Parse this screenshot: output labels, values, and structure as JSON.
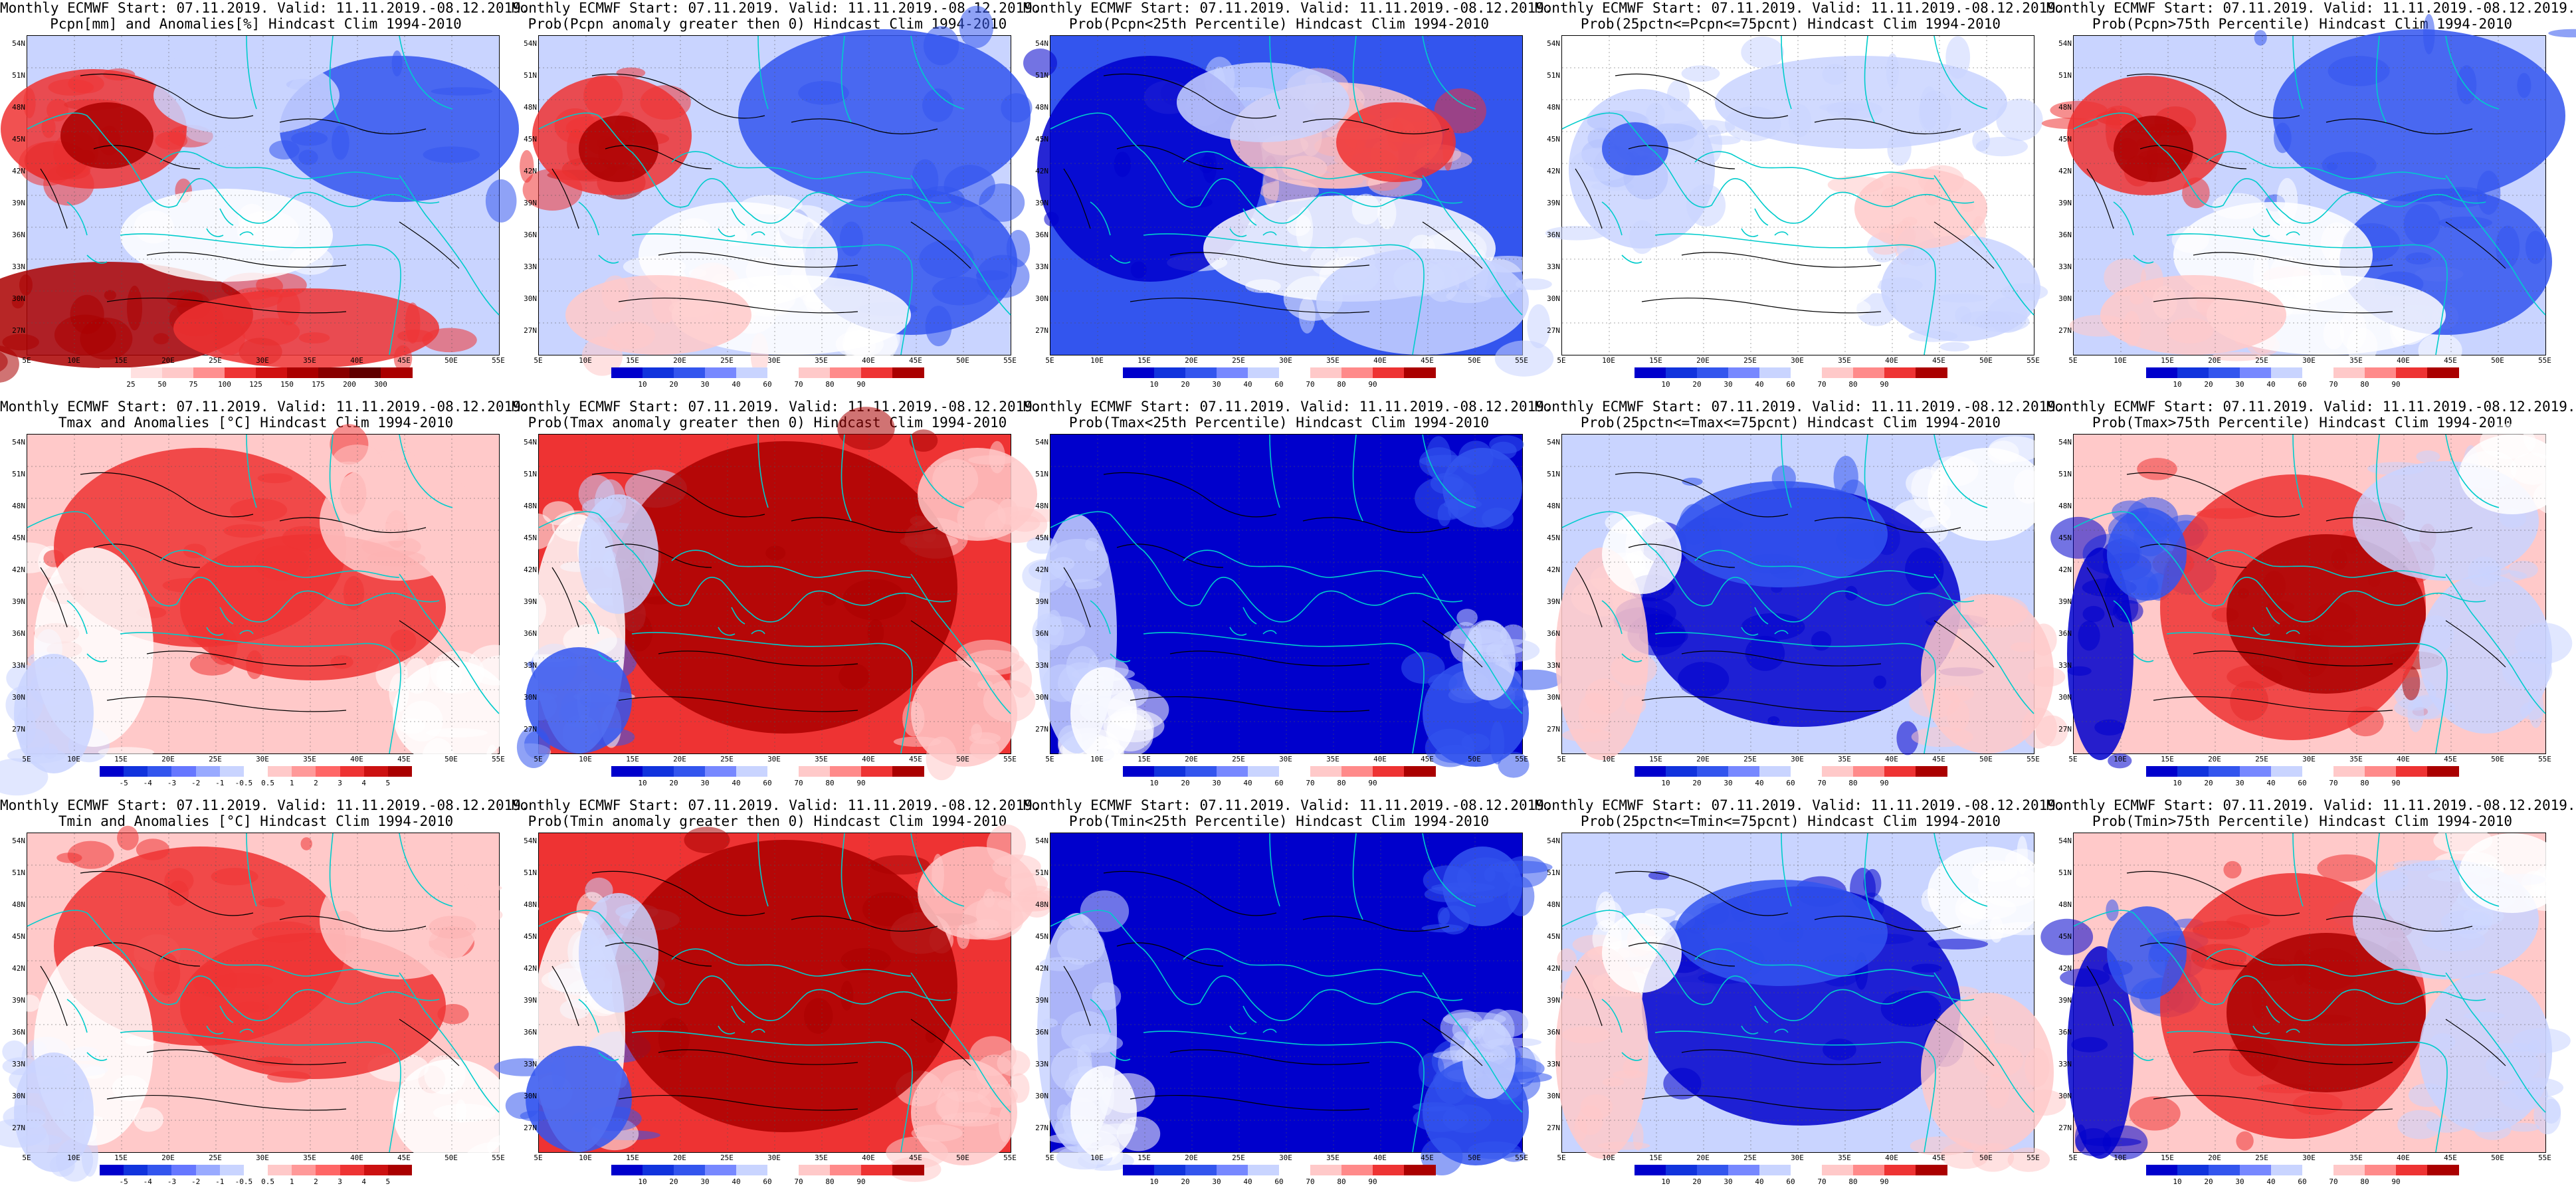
{
  "colors": {
    "deep_blue": "#0000cc",
    "blue": "#3355ee",
    "light_blue": "#c9d4ff",
    "white": "#ffffff",
    "light_red": "#ffc9c9",
    "red": "#ee3333",
    "dark_red": "#aa0000",
    "coast": "#00cccc",
    "contour": "#000000"
  },
  "lat_labels": [
    "54N",
    "51N",
    "48N",
    "45N",
    "42N",
    "39N",
    "36N",
    "33N",
    "30N",
    "27N"
  ],
  "lon_labels": [
    "5E",
    "10E",
    "15E",
    "20E",
    "25E",
    "30E",
    "35E",
    "40E",
    "45E",
    "50E",
    "55E"
  ],
  "colorbars": {
    "pcpn": [
      "25",
      "50",
      "75",
      "100",
      "125",
      "150",
      "175",
      "200",
      "300"
    ],
    "prob": [
      "10",
      "20",
      "30",
      "40",
      "60",
      "70",
      "80",
      "90"
    ],
    "temp": [
      "-5",
      "-4",
      "-3",
      "-2",
      "-1",
      "-0.5",
      "0.5",
      "1",
      "2",
      "3",
      "4",
      "5"
    ]
  },
  "panels": [
    {
      "title1": "Monthly ECMWF Start: 07.11.2019. Valid: 11.11.2019.-08.12.2019.",
      "title2": "Pcpn[mm] and Anomalies[%] Hindcast Clim 1994-2010",
      "bar": "pcpn",
      "bias": "red-south"
    },
    {
      "title1": "Monthly ECMWF Start: 07.11.2019. Valid: 11.11.2019.-08.12.2019.",
      "title2": "Prob(Pcpn anomaly greater then 0) Hindcast Clim 1994-2010",
      "bar": "prob",
      "bias": "blue-east"
    },
    {
      "title1": "Monthly ECMWF Start: 07.11.2019. Valid: 11.11.2019.-08.12.2019.",
      "title2": "Prob(Pcpn<25th Percentile) Hindcast Clim 1994-2010",
      "bar": "prob",
      "bias": "blue-west"
    },
    {
      "title1": "Monthly ECMWF Start: 07.11.2019. Valid: 11.11.2019.-08.12.2019.",
      "title2": "Prob(25pctn<=Pcpn<=75pcnt) Hindcast Clim 1994-2010",
      "bar": "prob",
      "bias": "pale"
    },
    {
      "title1": "Monthly ECMWF Start: 07.11.2019. Valid: 11.11.2019.-08.12.2019.",
      "title2": "Prob(Pcpn>75th Percentile) Hindcast Clim 1994-2010",
      "bar": "prob",
      "bias": "blue-east"
    },
    {
      "title1": "Monthly ECMWF Start: 07.11.2019. Valid: 11.11.2019.-08.12.2019.",
      "title2": "Tmax and Anomalies [°C] Hindcast Clim 1994-2010",
      "bar": "temp",
      "bias": "light-red"
    },
    {
      "title1": "Monthly ECMWF Start: 07.11.2019. Valid: 11.11.2019.-08.12.2019.",
      "title2": "Prob(Tmax anomaly greater then 0) Hindcast Clim 1994-2010",
      "bar": "prob",
      "bias": "dark-red"
    },
    {
      "title1": "Monthly ECMWF Start: 07.11.2019. Valid: 11.11.2019.-08.12.2019.",
      "title2": "Prob(Tmax<25th Percentile) Hindcast Clim 1994-2010",
      "bar": "prob",
      "bias": "deep-blue"
    },
    {
      "title1": "Monthly ECMWF Start: 07.11.2019. Valid: 11.11.2019.-08.12.2019.",
      "title2": "Prob(25pctn<=Tmax<=75pcnt) Hindcast Clim 1994-2010",
      "bar": "prob",
      "bias": "blue-center"
    },
    {
      "title1": "Monthly ECMWF Start: 07.11.2019. Valid: 11.11.2019.-08.12.2019.",
      "title2": "Prob(Tmax>75th Percentile) Hindcast Clim 1994-2010",
      "bar": "prob",
      "bias": "red-center"
    },
    {
      "title1": "Monthly ECMWF Start: 07.11.2019. Valid: 11.11.2019.-08.12.2019.",
      "title2": "Tmin and Anomalies [°C] Hindcast Clim 1994-2010",
      "bar": "temp",
      "bias": "light-red"
    },
    {
      "title1": "Monthly ECMWF Start: 07.11.2019. Valid: 11.11.2019.-08.12.2019.",
      "title2": "Prob(Tmin anomaly greater then 0) Hindcast Clim 1994-2010",
      "bar": "prob",
      "bias": "dark-red"
    },
    {
      "title1": "Monthly ECMWF Start: 07.11.2019. Valid: 11.11.2019.-08.12.2019.",
      "title2": "Prob(Tmin<25th Percentile) Hindcast Clim 1994-2010",
      "bar": "prob",
      "bias": "deep-blue"
    },
    {
      "title1": "Monthly ECMWF Start: 07.11.2019. Valid: 11.11.2019.-08.12.2019.",
      "title2": "Prob(25pctn<=Tmin<=75pcnt) Hindcast Clim 1994-2010",
      "bar": "prob",
      "bias": "blue-center"
    },
    {
      "title1": "Monthly ECMWF Start: 07.11.2019. Valid: 11.11.2019.-08.12.2019.",
      "title2": "Prob(Tmin>75th Percentile) Hindcast Clim 1994-2010",
      "bar": "prob",
      "bias": "red-center"
    }
  ]
}
